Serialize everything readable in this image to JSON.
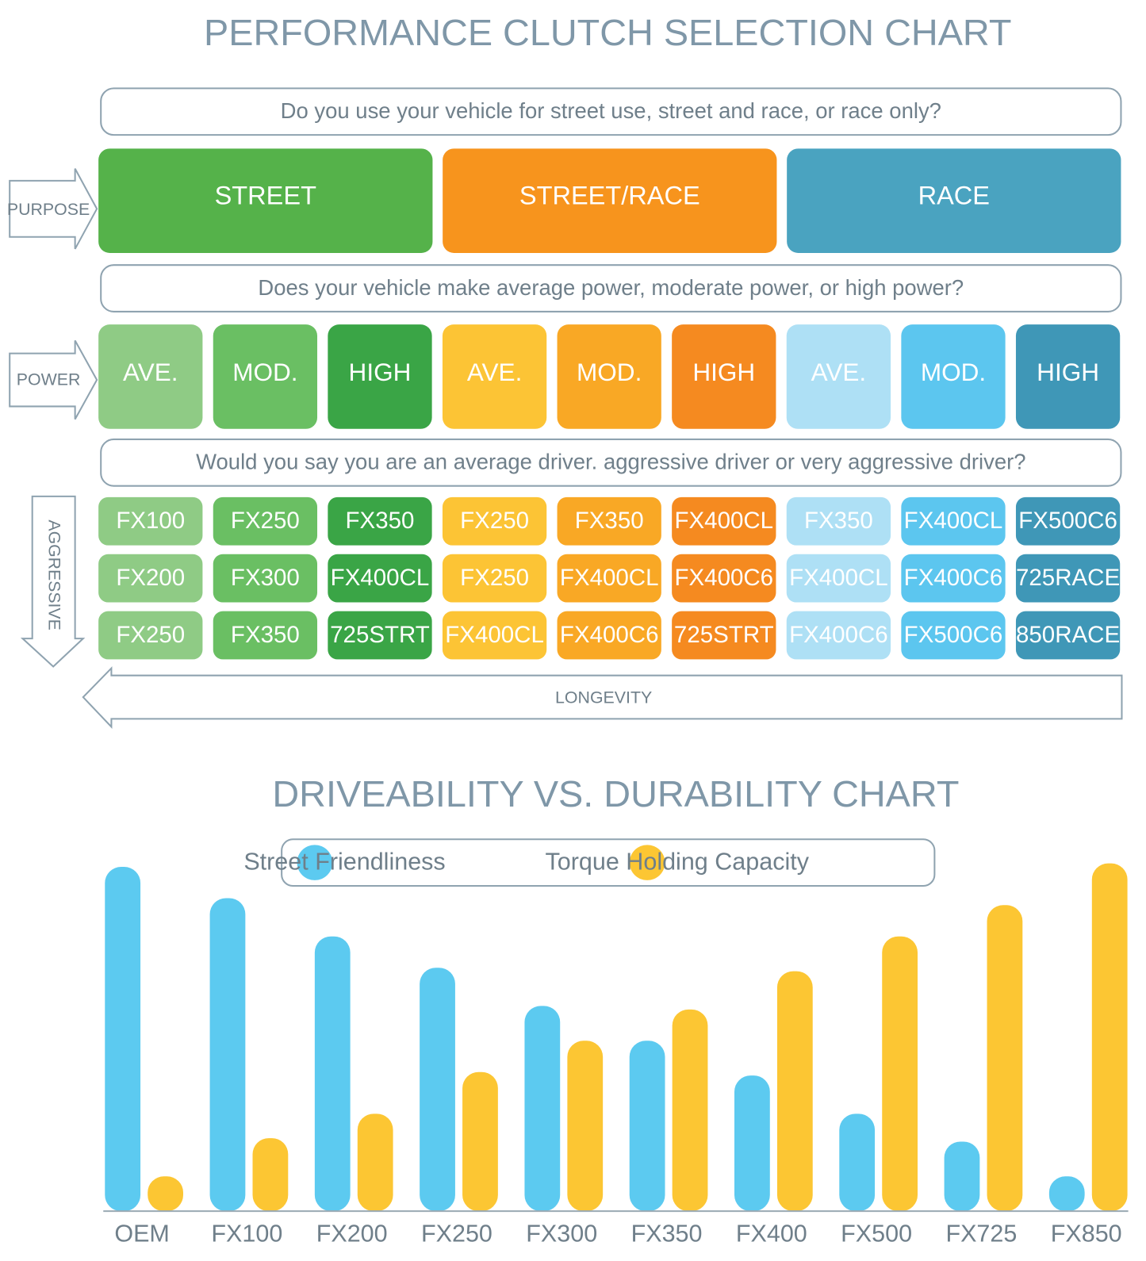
{
  "selection": {
    "title": "PERFORMANCE CLUTCH SELECTION CHART",
    "questions": [
      "Do you use your vehicle for street use, street and race, or race only?",
      "Does your vehicle make average power, moderate power, or high power?",
      "Would you say you are an average driver. aggressive driver or very aggressive driver?"
    ],
    "axis_labels": {
      "purpose": "PURPOSE",
      "power": "POWER",
      "aggressive": "AGGRESSIVE",
      "longevity": "LONGEVITY"
    },
    "purposes": [
      {
        "label": "STREET",
        "color": "#55b24a"
      },
      {
        "label": "STREET/RACE",
        "color": "#f7941d"
      },
      {
        "label": "RACE",
        "color": "#4aa3c0"
      }
    ],
    "power_levels": [
      {
        "label": "AVE.",
        "color": "#8fcb85"
      },
      {
        "label": "MOD.",
        "color": "#6abf63"
      },
      {
        "label": "HIGH",
        "color": "#3aa546"
      },
      {
        "label": "AVE.",
        "color": "#fcc435"
      },
      {
        "label": "MOD.",
        "color": "#f9a825"
      },
      {
        "label": "HIGH",
        "color": "#f58a20"
      },
      {
        "label": "AVE.",
        "color": "#aee0f5"
      },
      {
        "label": "MOD.",
        "color": "#5cc6ef"
      },
      {
        "label": "HIGH",
        "color": "#3f97b7"
      }
    ],
    "models": [
      [
        "FX100",
        "FX250",
        "FX350",
        "FX250",
        "FX350",
        "FX400CL",
        "FX350",
        "FX400CL",
        "FX500C6"
      ],
      [
        "FX200",
        "FX300",
        "FX400CL",
        "FX250",
        "FX400CL",
        "FX400C6",
        "FX400CL",
        "FX400C6",
        "725RACE"
      ],
      [
        "FX250",
        "FX350",
        "725STRT",
        "FX400CL",
        "FX400C6",
        "725STRT",
        "FX400C6",
        "FX500C6",
        "850RACE"
      ]
    ]
  },
  "chart_data": {
    "type": "bar",
    "title": "DRIVEABILITY VS. DURABILITY CHART",
    "categories": [
      "OEM",
      "FX100",
      "FX200",
      "FX250",
      "FX300",
      "FX350",
      "FX400",
      "FX500",
      "FX725",
      "FX850"
    ],
    "series": [
      {
        "name": "Street Friendliness",
        "color": "#5ccaf0",
        "values": [
          99,
          90,
          79,
          70,
          59,
          49,
          39,
          28,
          20,
          10
        ]
      },
      {
        "name": "Torque Holding Capacity",
        "color": "#fcc633",
        "values": [
          10,
          21,
          28,
          40,
          49,
          58,
          69,
          79,
          88,
          100
        ]
      }
    ],
    "ylim": [
      0,
      100
    ],
    "legend": "top"
  }
}
